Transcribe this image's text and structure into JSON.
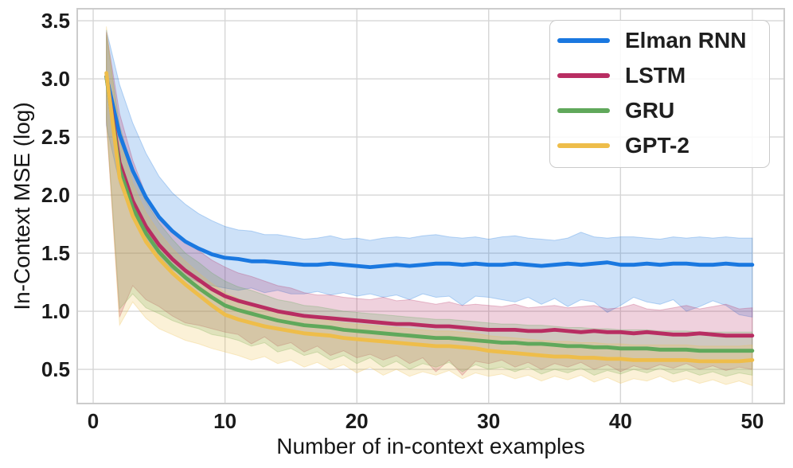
{
  "chart_data": {
    "type": "line",
    "title": "",
    "xlabel": "Number of in-context examples",
    "ylabel": "In-Context MSE (log)",
    "grid": true,
    "legend_position": "upper right",
    "xlim": [
      -1.21,
      52.42
    ],
    "ylim": [
      0.206,
      3.603
    ],
    "x_tick_labels": [
      "0",
      "10",
      "20",
      "30",
      "40",
      "50"
    ],
    "x_tick_values": [
      0,
      10,
      20,
      30,
      40,
      50
    ],
    "y_tick_labels": [
      "0.5",
      "1.0",
      "1.5",
      "2.0",
      "2.5",
      "3.0",
      "3.5"
    ],
    "y_tick_values": [
      0.5,
      1.0,
      1.5,
      2.0,
      2.5,
      3.0,
      3.5
    ],
    "x": [
      1,
      2,
      3,
      4,
      5,
      6,
      7,
      8,
      9,
      10,
      11,
      12,
      13,
      14,
      15,
      16,
      17,
      18,
      19,
      20,
      21,
      22,
      23,
      24,
      25,
      26,
      27,
      28,
      29,
      30,
      31,
      32,
      33,
      34,
      35,
      36,
      37,
      38,
      39,
      40,
      41,
      42,
      43,
      44,
      45,
      46,
      47,
      48,
      49,
      50
    ],
    "series": [
      {
        "name": "Elman RNN",
        "color": "#1a78e0",
        "values": [
          3.02,
          2.52,
          2.21,
          1.98,
          1.81,
          1.69,
          1.6,
          1.54,
          1.49,
          1.46,
          1.45,
          1.43,
          1.43,
          1.42,
          1.41,
          1.4,
          1.4,
          1.41,
          1.4,
          1.39,
          1.38,
          1.39,
          1.4,
          1.39,
          1.4,
          1.41,
          1.41,
          1.4,
          1.41,
          1.4,
          1.4,
          1.41,
          1.4,
          1.39,
          1.4,
          1.41,
          1.4,
          1.41,
          1.42,
          1.4,
          1.4,
          1.41,
          1.4,
          1.41,
          1.41,
          1.4,
          1.4,
          1.41,
          1.4,
          1.4
        ],
        "band_upper": [
          3.42,
          2.95,
          2.62,
          2.36,
          2.16,
          2.02,
          1.92,
          1.84,
          1.78,
          1.73,
          1.7,
          1.69,
          1.66,
          1.66,
          1.64,
          1.62,
          1.63,
          1.65,
          1.62,
          1.63,
          1.61,
          1.63,
          1.64,
          1.63,
          1.65,
          1.66,
          1.64,
          1.63,
          1.64,
          1.62,
          1.64,
          1.65,
          1.63,
          1.62,
          1.61,
          1.63,
          1.68,
          1.64,
          1.63,
          1.64,
          1.64,
          1.63,
          1.62,
          1.64,
          1.63,
          1.64,
          1.63,
          1.64,
          1.63,
          1.63
        ],
        "band_lower": [
          2.6,
          2.1,
          1.8,
          1.58,
          1.45,
          1.36,
          1.3,
          1.25,
          1.22,
          1.2,
          1.18,
          1.2,
          1.16,
          1.18,
          1.15,
          1.15,
          1.17,
          1.14,
          1.16,
          1.13,
          1.15,
          1.12,
          1.14,
          1.1,
          1.15,
          1.12,
          1.13,
          1.05,
          1.13,
          1.12,
          1.1,
          1.08,
          1.12,
          1.06,
          1.11,
          1.04,
          1.1,
          1.08,
          0.99,
          1.05,
          1.12,
          1.08,
          1.06,
          1.1,
          1.0,
          1.04,
          1.09,
          1.05,
          0.97,
          0.95
        ]
      },
      {
        "name": "LSTM",
        "color": "#b82d62",
        "values": [
          3.02,
          2.28,
          1.95,
          1.73,
          1.57,
          1.45,
          1.35,
          1.27,
          1.19,
          1.13,
          1.09,
          1.06,
          1.03,
          1.0,
          0.98,
          0.96,
          0.95,
          0.94,
          0.93,
          0.92,
          0.91,
          0.9,
          0.89,
          0.89,
          0.88,
          0.87,
          0.87,
          0.86,
          0.85,
          0.84,
          0.84,
          0.84,
          0.83,
          0.83,
          0.84,
          0.83,
          0.82,
          0.83,
          0.82,
          0.82,
          0.81,
          0.82,
          0.81,
          0.8,
          0.8,
          0.81,
          0.8,
          0.79,
          0.79,
          0.79
        ],
        "band_upper": [
          3.4,
          2.7,
          2.3,
          2.0,
          1.82,
          1.7,
          1.6,
          1.52,
          1.44,
          1.38,
          1.33,
          1.3,
          1.26,
          1.22,
          1.2,
          1.16,
          1.14,
          1.14,
          1.12,
          1.11,
          1.1,
          1.12,
          1.09,
          1.1,
          1.08,
          1.06,
          1.08,
          1.05,
          1.06,
          1.05,
          1.04,
          1.06,
          1.03,
          1.04,
          1.05,
          1.03,
          1.04,
          1.05,
          1.02,
          1.03,
          1.06,
          1.02,
          1.01,
          1.03,
          1.05,
          1.02,
          1.04,
          1.06,
          1.02,
          1.03
        ],
        "band_lower": [
          2.62,
          0.95,
          1.22,
          1.1,
          1.04,
          0.96,
          0.9,
          0.88,
          0.85,
          0.82,
          0.8,
          0.72,
          0.78,
          0.7,
          0.73,
          0.65,
          0.7,
          0.62,
          0.66,
          0.6,
          0.63,
          0.58,
          0.62,
          0.55,
          0.6,
          0.48,
          0.58,
          0.45,
          0.57,
          0.55,
          0.58,
          0.52,
          0.56,
          0.5,
          0.55,
          0.52,
          0.56,
          0.5,
          0.54,
          0.48,
          0.53,
          0.5,
          0.54,
          0.51,
          0.55,
          0.5,
          0.53,
          0.49,
          0.52,
          0.5
        ]
      },
      {
        "name": "GRU",
        "color": "#60a85b",
        "values": [
          3.02,
          2.22,
          1.89,
          1.67,
          1.51,
          1.39,
          1.29,
          1.2,
          1.12,
          1.05,
          1.01,
          0.98,
          0.95,
          0.92,
          0.9,
          0.88,
          0.87,
          0.86,
          0.84,
          0.83,
          0.82,
          0.81,
          0.8,
          0.79,
          0.78,
          0.77,
          0.77,
          0.76,
          0.75,
          0.74,
          0.73,
          0.73,
          0.72,
          0.72,
          0.71,
          0.7,
          0.7,
          0.69,
          0.69,
          0.68,
          0.68,
          0.68,
          0.67,
          0.67,
          0.67,
          0.66,
          0.66,
          0.66,
          0.66,
          0.66
        ],
        "band_upper": [
          3.38,
          2.6,
          2.2,
          1.94,
          1.76,
          1.62,
          1.5,
          1.42,
          1.33,
          1.26,
          1.21,
          1.18,
          1.14,
          1.1,
          1.08,
          1.05,
          1.04,
          1.02,
          1.0,
          0.99,
          0.98,
          0.97,
          0.96,
          0.95,
          0.94,
          0.93,
          0.93,
          0.92,
          0.91,
          0.9,
          0.89,
          0.89,
          0.88,
          0.88,
          0.87,
          0.86,
          0.86,
          0.85,
          0.85,
          0.84,
          0.84,
          0.84,
          0.83,
          0.83,
          0.83,
          0.82,
          0.82,
          0.82,
          0.82,
          0.82
        ],
        "band_lower": [
          2.66,
          1.02,
          1.15,
          1.03,
          0.98,
          0.92,
          0.88,
          0.85,
          0.8,
          0.78,
          0.75,
          0.7,
          0.73,
          0.65,
          0.68,
          0.62,
          0.65,
          0.58,
          0.62,
          0.55,
          0.6,
          0.52,
          0.57,
          0.5,
          0.55,
          0.52,
          0.56,
          0.48,
          0.54,
          0.5,
          0.52,
          0.48,
          0.52,
          0.46,
          0.5,
          0.47,
          0.51,
          0.45,
          0.49,
          0.46,
          0.5,
          0.47,
          0.51,
          0.46,
          0.49,
          0.45,
          0.48,
          0.44,
          0.47,
          0.45
        ]
      },
      {
        "name": "GPT-2",
        "color": "#eebd4a",
        "values": [
          3.05,
          2.15,
          1.82,
          1.6,
          1.45,
          1.33,
          1.23,
          1.14,
          1.05,
          0.97,
          0.93,
          0.9,
          0.87,
          0.85,
          0.83,
          0.81,
          0.8,
          0.79,
          0.77,
          0.76,
          0.75,
          0.74,
          0.73,
          0.72,
          0.71,
          0.7,
          0.7,
          0.69,
          0.68,
          0.66,
          0.65,
          0.64,
          0.63,
          0.62,
          0.61,
          0.61,
          0.6,
          0.6,
          0.59,
          0.59,
          0.58,
          0.58,
          0.58,
          0.58,
          0.58,
          0.57,
          0.57,
          0.57,
          0.57,
          0.58
        ],
        "band_upper": [
          3.45,
          2.5,
          2.1,
          1.85,
          1.68,
          1.54,
          1.43,
          1.33,
          1.24,
          1.16,
          1.11,
          1.07,
          1.03,
          1.0,
          0.98,
          0.95,
          0.94,
          0.92,
          0.9,
          0.89,
          0.88,
          0.87,
          0.86,
          0.85,
          0.84,
          0.83,
          0.83,
          0.82,
          0.81,
          0.79,
          0.78,
          0.77,
          0.76,
          0.75,
          0.74,
          0.74,
          0.73,
          0.73,
          0.72,
          0.72,
          0.71,
          0.71,
          0.71,
          0.71,
          0.71,
          0.7,
          0.7,
          0.7,
          0.7,
          0.71
        ],
        "band_lower": [
          2.65,
          0.88,
          1.08,
          0.94,
          0.85,
          0.8,
          0.75,
          0.72,
          0.68,
          0.65,
          0.62,
          0.58,
          0.61,
          0.55,
          0.58,
          0.52,
          0.56,
          0.5,
          0.54,
          0.47,
          0.52,
          0.45,
          0.5,
          0.44,
          0.48,
          0.45,
          0.49,
          0.42,
          0.47,
          0.44,
          0.46,
          0.42,
          0.45,
          0.4,
          0.44,
          0.41,
          0.45,
          0.39,
          0.43,
          0.38,
          0.42,
          0.4,
          0.44,
          0.39,
          0.42,
          0.38,
          0.41,
          0.37,
          0.4,
          0.36
        ]
      }
    ]
  }
}
